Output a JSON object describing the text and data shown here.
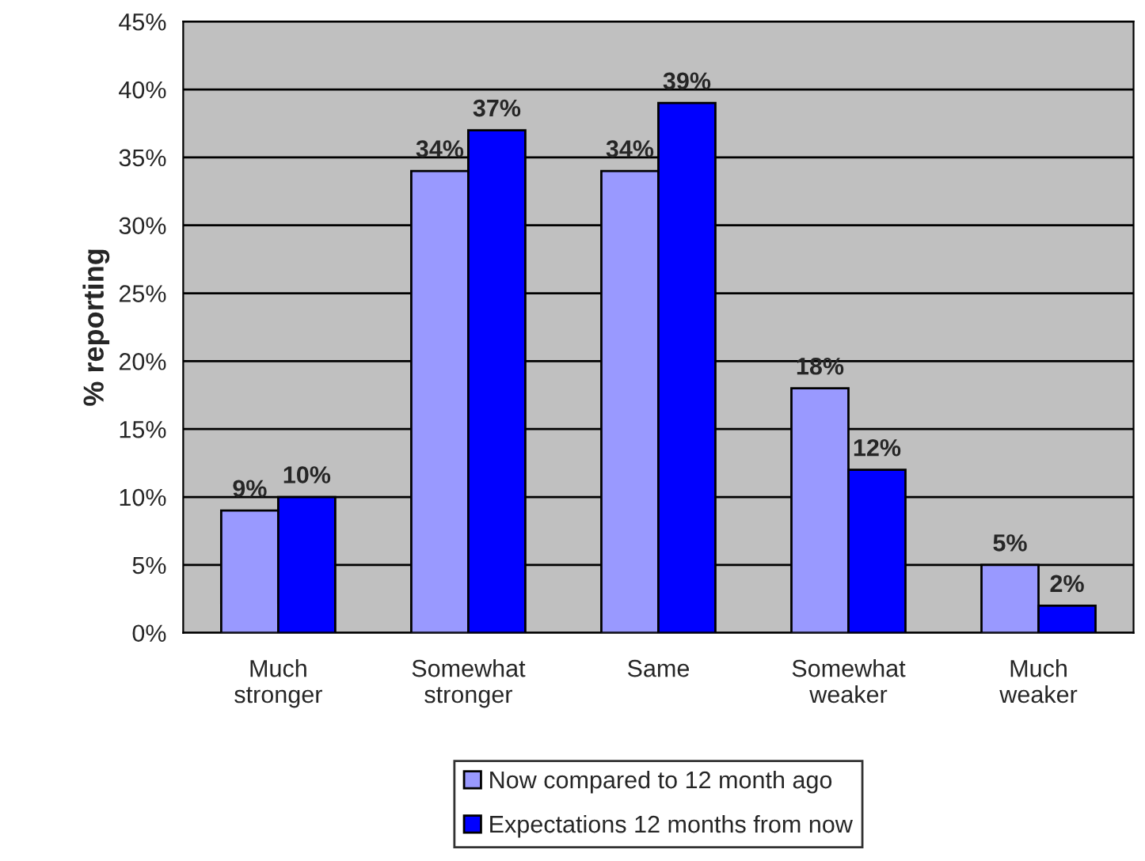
{
  "chart_data": {
    "type": "bar",
    "ylabel": "% reporting",
    "categories": [
      "Much\nstronger",
      "Somewhat\nstronger",
      "Same",
      "Somewhat\nweaker",
      "Much\nweaker"
    ],
    "series": [
      {
        "name": "Now compared to 12 month ago",
        "color": "#9999ff",
        "values": [
          9,
          34,
          34,
          18,
          5
        ],
        "value_labels": [
          "9%",
          "34%",
          "34%",
          "18%",
          "5%"
        ]
      },
      {
        "name": "Expectations 12 months from now",
        "color": "#0000ff",
        "values": [
          10,
          37,
          39,
          12,
          2
        ],
        "value_labels": [
          "10%",
          "37%",
          "39%",
          "12%",
          "2%"
        ]
      }
    ],
    "ylim": [
      0,
      45
    ],
    "yticks": [
      {
        "value": 0,
        "label": "0%"
      },
      {
        "value": 5,
        "label": "5%"
      },
      {
        "value": 10,
        "label": "10%"
      },
      {
        "value": 15,
        "label": "15%"
      },
      {
        "value": 20,
        "label": "20%"
      },
      {
        "value": 25,
        "label": "25%"
      },
      {
        "value": 30,
        "label": "30%"
      },
      {
        "value": 35,
        "label": "35%"
      },
      {
        "value": 40,
        "label": "40%"
      },
      {
        "value": 45,
        "label": "45%"
      }
    ],
    "grid": "y",
    "legend": "bottom"
  }
}
